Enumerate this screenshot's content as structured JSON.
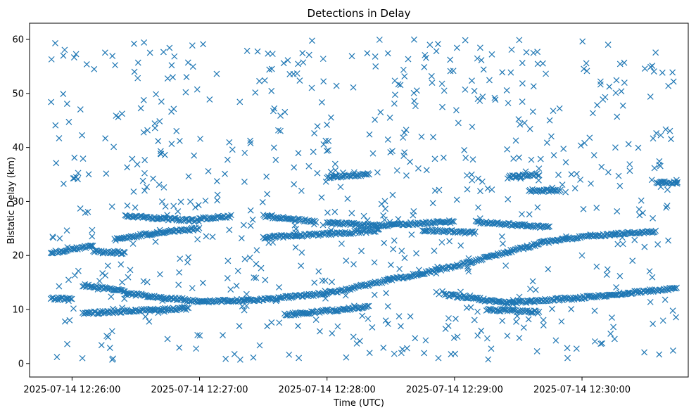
{
  "chart_data": {
    "type": "scatter",
    "title": "Detections in Delay",
    "xlabel": "Time (UTC)",
    "ylabel": "Bistatic Delay (km)",
    "marker": "x",
    "color": "#1f77b4",
    "grid": false,
    "legend": "none",
    "xlim": [
      "2025-07-14 12:25:40",
      "2025-07-14 12:30:50"
    ],
    "ylim": [
      -2.5,
      63
    ],
    "xticks": [
      "2025-07-14 12:26:00",
      "2025-07-14 12:27:00",
      "2025-07-14 12:28:00",
      "2025-07-14 12:29:00",
      "2025-07-14 12:30:00"
    ],
    "yticks": [
      "0",
      "10",
      "20",
      "30",
      "40",
      "50",
      "60"
    ],
    "series": [
      {
        "note_time_range": [
          "2025-07-14 12:25:50",
          "2025-07-14 12:30:45"
        ],
        "tracks": [
          {
            "segments": [
              {
                "t0": "2025-07-14 12:25:50",
                "t1": "2025-07-14 12:26:10",
                "y0": 20.5,
                "y1": 21.8
              },
              {
                "t0": "2025-07-14 12:26:20",
                "t1": "2025-07-14 12:26:40",
                "y0": 23.0,
                "y1": 24.2
              },
              {
                "t0": "2025-07-14 12:26:40",
                "t1": "2025-07-14 12:27:00",
                "y0": 24.2,
                "y1": 25.0
              }
            ]
          },
          {
            "segments": [
              {
                "t0": "2025-07-14 12:26:10",
                "t1": "2025-07-14 12:26:25",
                "y0": 20.8,
                "y1": 20.5
              }
            ]
          },
          {
            "segments": [
              {
                "t0": "2025-07-14 12:26:25",
                "t1": "2025-07-14 12:27:00",
                "y0": 27.3,
                "y1": 26.4
              },
              {
                "t0": "2025-07-14 12:27:00",
                "t1": "2025-07-14 12:27:15",
                "y0": 26.8,
                "y1": 27.3
              },
              {
                "t0": "2025-07-14 12:27:30",
                "t1": "2025-07-14 12:27:55",
                "y0": 27.3,
                "y1": 26.2
              }
            ]
          },
          {
            "segments": [
              {
                "t0": "2025-07-14 12:27:30",
                "t1": "2025-07-14 12:28:25",
                "y0": 23.3,
                "y1": 24.6
              },
              {
                "t0": "2025-07-14 12:28:00",
                "t1": "2025-07-14 12:28:30",
                "y0": 26.0,
                "y1": 25.5
              },
              {
                "t0": "2025-07-14 12:28:30",
                "t1": "2025-07-14 12:29:00",
                "y0": 25.7,
                "y1": 26.3
              }
            ]
          },
          {
            "segments": [
              {
                "t0": "2025-07-14 12:28:45",
                "t1": "2025-07-14 12:29:10",
                "y0": 24.7,
                "y1": 24.2
              },
              {
                "t0": "2025-07-14 12:29:10",
                "t1": "2025-07-14 12:29:45",
                "y0": 26.2,
                "y1": 25.2
              }
            ]
          },
          {
            "segments": [
              {
                "t0": "2025-07-14 12:28:00",
                "t1": "2025-07-14 12:28:20",
                "y0": 34.5,
                "y1": 35.0
              },
              {
                "t0": "2025-07-14 12:29:25",
                "t1": "2025-07-14 12:29:40",
                "y0": 34.5,
                "y1": 35.0
              },
              {
                "t0": "2025-07-14 12:29:35",
                "t1": "2025-07-14 12:29:50",
                "y0": 32.0,
                "y1": 32.0
              },
              {
                "t0": "2025-07-14 12:30:35",
                "t1": "2025-07-14 12:30:45",
                "y0": 33.5,
                "y1": 33.5
              }
            ]
          },
          {
            "segments": [
              {
                "t0": "2025-07-14 12:25:50",
                "t1": "2025-07-14 12:26:00",
                "y0": 12.0,
                "y1": 12.0
              },
              {
                "t0": "2025-07-14 12:26:05",
                "t1": "2025-07-14 12:26:25",
                "y0": 14.5,
                "y1": 13.5
              },
              {
                "t0": "2025-07-14 12:26:25",
                "t1": "2025-07-14 12:27:00",
                "y0": 13.0,
                "y1": 11.5
              },
              {
                "t0": "2025-07-14 12:27:00",
                "t1": "2025-07-14 12:27:30",
                "y0": 11.5,
                "y1": 11.8
              },
              {
                "t0": "2025-07-14 12:27:30",
                "t1": "2025-07-14 12:28:00",
                "y0": 11.8,
                "y1": 13.0
              },
              {
                "t0": "2025-07-14 12:28:00",
                "t1": "2025-07-14 12:28:30",
                "y0": 13.0,
                "y1": 15.5
              },
              {
                "t0": "2025-07-14 12:28:30",
                "t1": "2025-07-14 12:29:00",
                "y0": 15.5,
                "y1": 18.0
              },
              {
                "t0": "2025-07-14 12:29:00",
                "t1": "2025-07-14 12:29:40",
                "y0": 18.0,
                "y1": 22.2
              }
            ]
          },
          {
            "segments": [
              {
                "t0": "2025-07-14 12:26:05",
                "t1": "2025-07-14 12:26:30",
                "y0": 9.3,
                "y1": 9.8
              },
              {
                "t0": "2025-07-14 12:26:30",
                "t1": "2025-07-14 12:26:55",
                "y0": 9.8,
                "y1": 10.2
              },
              {
                "t0": "2025-07-14 12:27:40",
                "t1": "2025-07-14 12:28:20",
                "y0": 9.0,
                "y1": 10.5
              }
            ]
          },
          {
            "segments": [
              {
                "t0": "2025-07-14 12:28:55",
                "t1": "2025-07-14 12:29:25",
                "y0": 12.8,
                "y1": 11.2
              },
              {
                "t0": "2025-07-14 12:29:25",
                "t1": "2025-07-14 12:30:00",
                "y0": 11.2,
                "y1": 12.2
              },
              {
                "t0": "2025-07-14 12:30:00",
                "t1": "2025-07-14 12:30:45",
                "y0": 12.2,
                "y1": 14.0
              }
            ]
          },
          {
            "segments": [
              {
                "t0": "2025-07-14 12:29:40",
                "t1": "2025-07-14 12:30:00",
                "y0": 22.3,
                "y1": 23.5
              },
              {
                "t0": "2025-07-14 12:30:00",
                "t1": "2025-07-14 12:30:35",
                "y0": 23.5,
                "y1": 24.5
              }
            ]
          },
          {
            "segments": [
              {
                "t0": "2025-07-14 12:29:15",
                "t1": "2025-07-14 12:29:40",
                "y0": 10.0,
                "y1": 9.5
              }
            ]
          }
        ],
        "clutter_count": 700,
        "clutter_y_range": [
          0.5,
          60
        ]
      }
    ]
  }
}
